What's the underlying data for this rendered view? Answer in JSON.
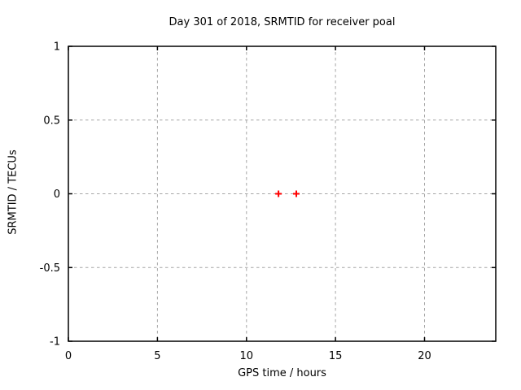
{
  "chart_data": {
    "type": "scatter",
    "title": "Day 301 of 2018, SRMTID for receiver poal",
    "xlabel": "GPS time / hours",
    "ylabel": "SRMTID / TECUs",
    "xlim": [
      0,
      24
    ],
    "ylim": [
      -1,
      1
    ],
    "xticks": [
      0,
      5,
      10,
      15,
      20
    ],
    "yticks": [
      -1,
      -0.5,
      0,
      0.5,
      1
    ],
    "grid": "dashed major grid, mirrored inward ticks",
    "legend": "none",
    "series": [
      {
        "marker": "plus",
        "color": "#ff0000",
        "points": [
          [
            11.8,
            0.0
          ],
          [
            12.8,
            0.0
          ]
        ]
      }
    ]
  },
  "colors": {
    "background": "#ffffff",
    "axis": "#000000",
    "grid": "#a6a6a6",
    "text": "#000000",
    "marker": "#ff0000"
  }
}
